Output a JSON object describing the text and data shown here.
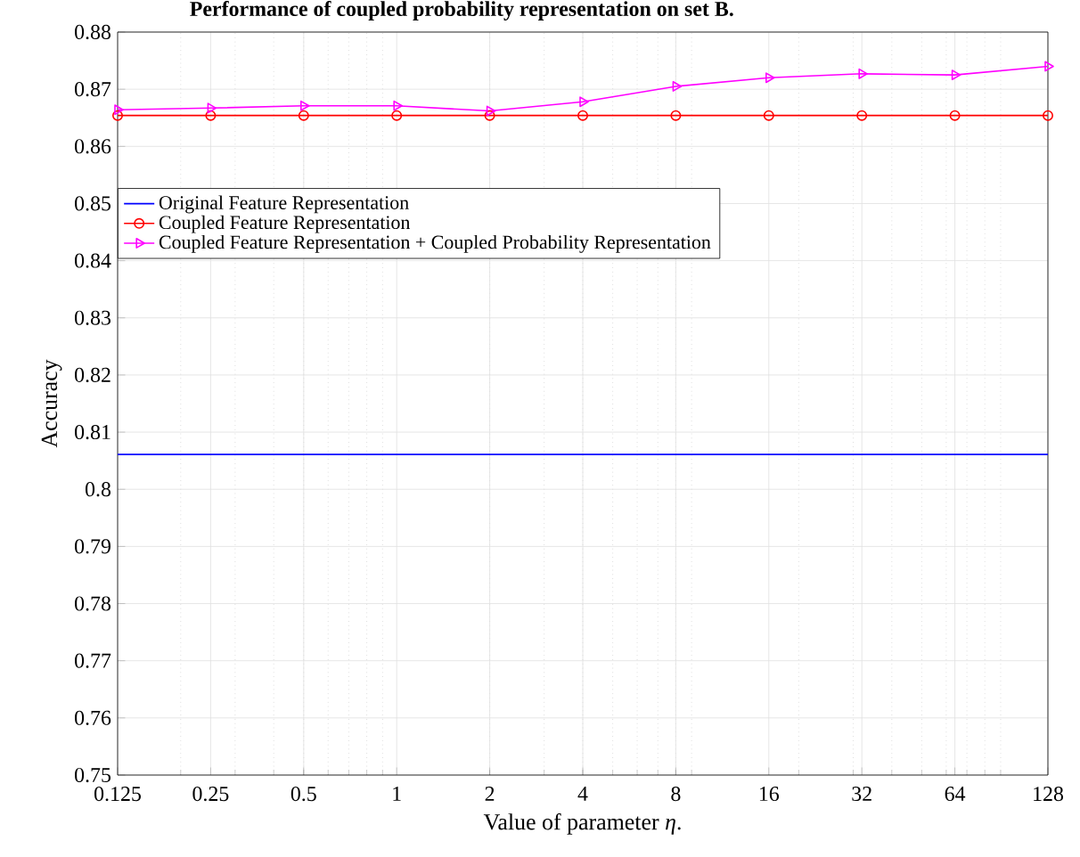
{
  "chart_data": {
    "type": "line",
    "title": "Performance of coupled probability representation on set B.",
    "xlabel": "Value of parameter *η*.",
    "ylabel": "Accuracy",
    "x": [
      0.125,
      0.25,
      0.5,
      1,
      2,
      4,
      8,
      16,
      32,
      64,
      128
    ],
    "series": [
      {
        "name": "Original Feature Representation",
        "color": "#0000ff",
        "marker": "none",
        "values": [
          0.8061,
          0.8061,
          0.8061,
          0.8061,
          0.8061,
          0.8061,
          0.8061,
          0.8061,
          0.8061,
          0.8061,
          0.8061
        ]
      },
      {
        "name": "Coupled Feature Representation",
        "color": "#ff0000",
        "marker": "circle",
        "values": [
          0.8654,
          0.8654,
          0.8654,
          0.8654,
          0.8654,
          0.8654,
          0.8654,
          0.8654,
          0.8654,
          0.8654,
          0.8654
        ]
      },
      {
        "name": "Coupled Feature Representation + Coupled Probability Representation",
        "color": "#ff00ff",
        "marker": "triangle",
        "values": [
          0.8664,
          0.8667,
          0.8671,
          0.8671,
          0.8662,
          0.8678,
          0.8705,
          0.872,
          0.8727,
          0.8725,
          0.874
        ]
      }
    ],
    "log": "x",
    "xlim": [
      0.125,
      128
    ],
    "xticks": [
      0.125,
      0.25,
      0.5,
      1,
      2,
      4,
      8,
      16,
      32,
      64,
      128
    ],
    "ylim": [
      0.75,
      0.88
    ],
    "yticks": [
      0.75,
      0.76,
      0.77,
      0.78,
      0.79,
      0.8,
      0.81,
      0.82,
      0.83,
      0.84,
      0.85,
      0.86,
      0.87,
      0.88
    ],
    "grid": true,
    "legend": "top left",
    "line_style": "solid"
  }
}
